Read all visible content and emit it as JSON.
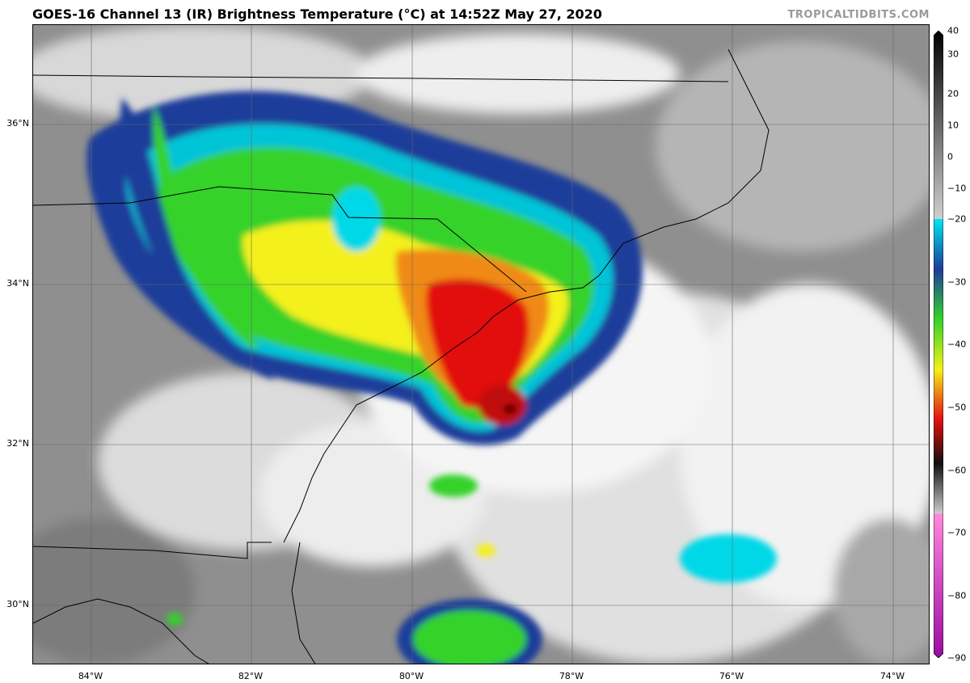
{
  "header": {
    "title": "GOES-16 Channel 13 (IR) Brightness Temperature (°C) at 14:52Z May 27, 2020",
    "brand": "TROPICALTIDBITS.COM"
  },
  "map": {
    "lat_labels": [
      "36°N",
      "34°N",
      "32°N",
      "30°N"
    ],
    "lon_labels": [
      "84°W",
      "82°W",
      "80°W",
      "78°W",
      "76°W",
      "74°W"
    ],
    "storm_center": {
      "lat": 32.5,
      "lon": -78.9
    }
  },
  "colorbar": {
    "range": [
      -90,
      40
    ],
    "ticks": [
      "40",
      "30",
      "20",
      "10",
      "0",
      "−10",
      "−20",
      "−30",
      "−40",
      "−50",
      "−60",
      "−70",
      "−80",
      "−90"
    ],
    "palette": {
      "warm": "#111111",
      "cloud_white": "#f0f0f0",
      "cyan": "#00d8e8",
      "blue": "#1e3c9a",
      "green": "#34d22a",
      "yellow": "#f4f01a",
      "orange": "#f08a18",
      "red": "#e21010",
      "darkred": "#5a0505",
      "magenta": "#d040b0"
    }
  }
}
